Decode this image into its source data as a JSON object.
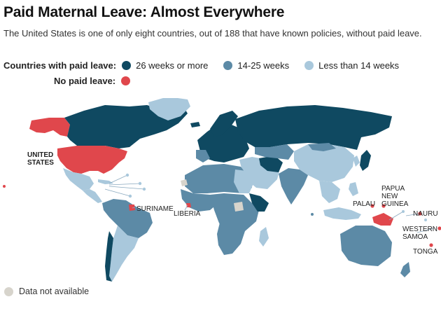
{
  "title": "Paid Maternal Leave: Almost Everywhere",
  "subtitle": "The United States is one of only eight countries, out of 188 that have known policies, without paid leave.",
  "legend": {
    "paid_label": "Countries with paid leave:",
    "no_paid_label": "No paid leave:",
    "categories": [
      {
        "label": "26 weeks or more",
        "color": "#0f4961"
      },
      {
        "label": "14-25 weeks",
        "color": "#5c8aa6"
      },
      {
        "label": "Less than 14 weeks",
        "color": "#a9c8dc"
      }
    ],
    "no_paid_color": "#e0474c",
    "data_not_available": {
      "label": "Data not available",
      "color": "#d7d4cc"
    }
  },
  "no_paid_leave_countries": [
    "UNITED STATES",
    "SURINAME",
    "LIBERIA",
    "PAPUA NEW GUINEA",
    "PALAU",
    "NAURU",
    "WESTERN SAMOA",
    "TONGA"
  ],
  "labels": {
    "united_states": [
      "UNITED",
      "STATES"
    ],
    "suriname": "SURINAME",
    "liberia": "LIBERIA",
    "palau": "PALAU",
    "papua_new_guinea": [
      "PAPUA",
      "NEW",
      "GUINEA"
    ],
    "nauru": "NAURU",
    "western_samoa": [
      "WESTERN",
      "SAMOA"
    ],
    "tonga": "TONGA"
  }
}
